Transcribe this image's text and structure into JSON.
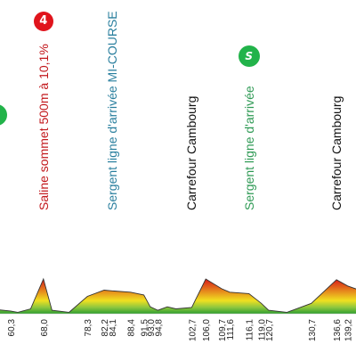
{
  "chart_data": {
    "type": "area",
    "title": "",
    "xlabel": "",
    "ylabel": "",
    "colors": {
      "fill_low": "#2e9e2e",
      "fill_mid": "#f0e020",
      "fill_high": "#d81818",
      "profile_line": "#333333",
      "axis_text": "#222222",
      "kom_badge": "#e0141c",
      "sprint_badge": "#22b34a",
      "label_red": "#c2181c",
      "label_teal": "#2a7f9e",
      "label_green": "#2f9a55",
      "label_black": "#111111"
    },
    "x_tick_labels": [
      "60,3",
      "68,0",
      "78,3",
      "82,2",
      "84,1",
      "88,4",
      "91,5",
      "93,0",
      "94,8",
      "102,7",
      "106,0",
      "109,7",
      "111,6",
      "116,1",
      "119,0",
      "120,7",
      "130,7",
      "136,6",
      "139,2"
    ],
    "profile": [
      {
        "km": 57.0,
        "elev": 12
      },
      {
        "km": 60.3,
        "elev": 8
      },
      {
        "km": 62.0,
        "elev": 4
      },
      {
        "km": 65.0,
        "elev": 14
      },
      {
        "km": 68.0,
        "elev": 100
      },
      {
        "km": 70.0,
        "elev": 10
      },
      {
        "km": 74.0,
        "elev": 4
      },
      {
        "km": 78.3,
        "elev": 50
      },
      {
        "km": 82.2,
        "elev": 68
      },
      {
        "km": 84.1,
        "elev": 66
      },
      {
        "km": 88.4,
        "elev": 62
      },
      {
        "km": 91.5,
        "elev": 54
      },
      {
        "km": 93.0,
        "elev": 20
      },
      {
        "km": 94.8,
        "elev": 10
      },
      {
        "km": 97.0,
        "elev": 20
      },
      {
        "km": 99.0,
        "elev": 14
      },
      {
        "km": 102.7,
        "elev": 18
      },
      {
        "km": 106.0,
        "elev": 100
      },
      {
        "km": 109.7,
        "elev": 72
      },
      {
        "km": 111.6,
        "elev": 62
      },
      {
        "km": 116.1,
        "elev": 58
      },
      {
        "km": 119.0,
        "elev": 30
      },
      {
        "km": 120.7,
        "elev": 10
      },
      {
        "km": 125.0,
        "elev": 4
      },
      {
        "km": 130.7,
        "elev": 30
      },
      {
        "km": 136.6,
        "elev": 98
      },
      {
        "km": 139.2,
        "elev": 80
      },
      {
        "km": 142.0,
        "elev": 68
      }
    ],
    "annotations": [
      {
        "text": "Saline  sommet 500m à 10,1%",
        "km": 68.0,
        "color": "label_red"
      },
      {
        "text": "Sergent ligne d'arrivée MI-COURSE",
        "km": 84.1,
        "color": "label_teal"
      },
      {
        "text": "Carrefour Cambourg",
        "km": 102.7,
        "color": "label_black"
      },
      {
        "text": "Sergent ligne d'arrivée",
        "km": 116.1,
        "color": "label_green"
      },
      {
        "text": "Carrefour Cambourg",
        "km": 136.6,
        "color": "label_black"
      }
    ],
    "badges": [
      {
        "type": "kom",
        "text": "4",
        "km": 68.0
      },
      {
        "type": "sprint",
        "text": "S",
        "km": 116.1
      },
      {
        "type": "sprint",
        "text": "S",
        "km": 57.0
      }
    ]
  }
}
